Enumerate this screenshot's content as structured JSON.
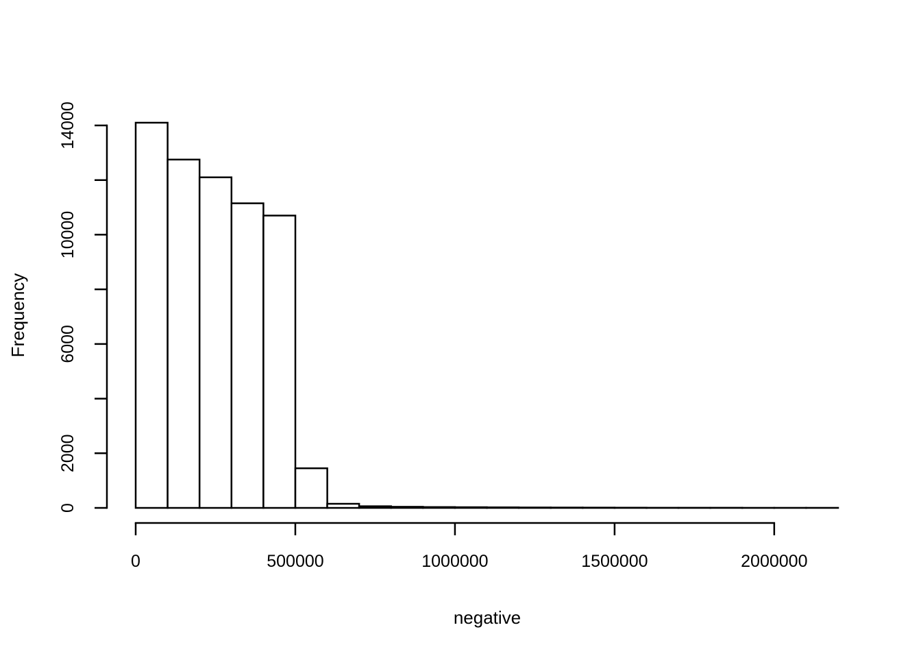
{
  "figure": {
    "background": "#ffffff",
    "line_color": "#000000"
  },
  "chart_data": {
    "type": "bar",
    "subtype": "histogram",
    "title": "",
    "xlabel": "negative",
    "ylabel": "Frequency",
    "xlim": [
      0,
      2200000
    ],
    "ylim": [
      0,
      14000
    ],
    "grid": false,
    "legend": null,
    "bar_fill": "#ffffff",
    "bar_stroke": "#000000",
    "bin_start": 0,
    "bin_width": 100000,
    "bin_edges": [
      0,
      100000,
      200000,
      300000,
      400000,
      500000,
      600000,
      700000,
      800000,
      900000,
      1000000,
      1100000,
      1200000,
      1300000,
      1400000,
      1500000,
      1600000,
      1700000,
      1800000,
      1900000,
      2000000,
      2100000,
      2200000
    ],
    "values": [
      14100,
      12750,
      12100,
      11150,
      10700,
      1450,
      150,
      60,
      40,
      30,
      25,
      20,
      15,
      12,
      10,
      8,
      6,
      5,
      4,
      3,
      2,
      2
    ],
    "x_ticks": [
      {
        "value": 0,
        "label": "0"
      },
      {
        "value": 500000,
        "label": "500000"
      },
      {
        "value": 1000000,
        "label": "1000000"
      },
      {
        "value": 1500000,
        "label": "1500000"
      },
      {
        "value": 2000000,
        "label": "2000000"
      }
    ],
    "y_ticks": [
      {
        "value": 0,
        "label": "0"
      },
      {
        "value": 2000,
        "label": "2000"
      },
      {
        "value": 4000,
        "label": ""
      },
      {
        "value": 6000,
        "label": "6000"
      },
      {
        "value": 8000,
        "label": ""
      },
      {
        "value": 10000,
        "label": "10000"
      },
      {
        "value": 12000,
        "label": ""
      },
      {
        "value": 14000,
        "label": "14000"
      }
    ]
  }
}
